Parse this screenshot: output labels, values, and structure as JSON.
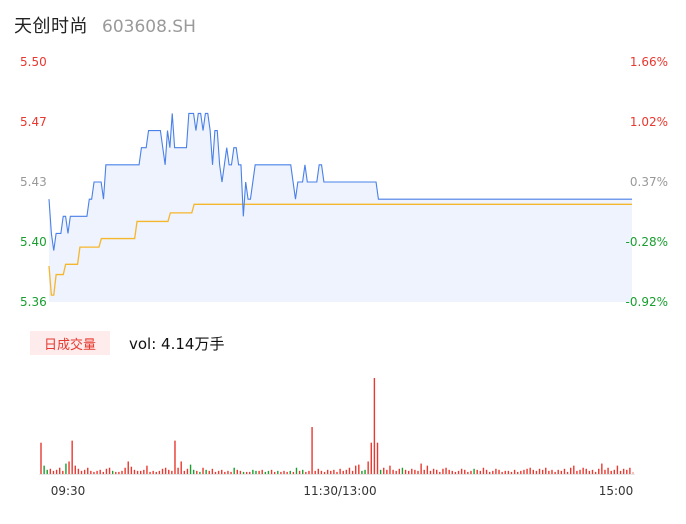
{
  "header": {
    "name": "天创时尚",
    "code": "603608.SH"
  },
  "volume_panel": {
    "tab_label": "日成交量",
    "vol_label": "vol: 4.14万手"
  },
  "colors": {
    "price_line": "#4a80e8",
    "avg_line": "#f5b62c",
    "up": "#e8382f",
    "down": "#1a9e2f",
    "flat": "#999999",
    "area_fill": "#eef3fd"
  },
  "chart_data": [
    {
      "type": "line",
      "title": "",
      "y_left_ticks": [
        "5.50",
        "5.47",
        "5.43",
        "5.40",
        "5.36"
      ],
      "y_right_ticks": [
        "1.66%",
        "1.02%",
        "0.37%",
        "-0.28%",
        "-0.92%"
      ],
      "ylim": [
        5.36,
        5.5
      ],
      "series": [
        {
          "values": [
            5.42,
            5.4,
            5.39,
            5.4,
            5.4,
            5.4,
            5.41,
            5.41,
            5.4,
            5.41,
            5.41,
            5.41,
            5.41,
            5.41,
            5.41,
            5.41,
            5.41,
            5.42,
            5.42,
            5.43,
            5.43,
            5.43,
            5.43,
            5.42,
            5.44,
            5.44,
            5.44,
            5.44,
            5.44,
            5.44,
            5.44,
            5.44,
            5.44,
            5.44,
            5.44,
            5.44,
            5.44,
            5.44,
            5.44,
            5.45,
            5.45,
            5.45,
            5.46,
            5.46,
            5.46,
            5.46,
            5.46,
            5.46,
            5.45,
            5.44,
            5.46,
            5.45,
            5.47,
            5.45,
            5.45,
            5.45,
            5.45,
            5.45,
            5.45,
            5.47,
            5.47,
            5.47,
            5.46,
            5.47,
            5.47,
            5.46,
            5.47,
            5.47,
            5.46,
            5.44,
            5.46,
            5.46,
            5.44,
            5.43,
            5.44,
            5.45,
            5.44,
            5.44,
            5.45,
            5.45,
            5.44,
            5.44,
            5.41,
            5.43,
            5.42,
            5.42,
            5.43,
            5.44,
            5.44,
            5.44,
            5.44,
            5.44,
            5.44,
            5.44,
            5.44,
            5.44,
            5.44,
            5.44,
            5.44,
            5.44,
            5.44,
            5.44,
            5.44,
            5.43,
            5.42,
            5.43,
            5.43,
            5.43,
            5.44,
            5.43,
            5.43,
            5.43,
            5.43,
            5.43,
            5.44,
            5.44,
            5.43,
            5.43,
            5.43,
            5.43,
            5.43,
            5.43,
            5.43,
            5.43,
            5.43,
            5.43,
            5.43,
            5.43,
            5.43,
            5.43,
            5.43,
            5.43,
            5.43,
            5.43,
            5.43,
            5.43,
            5.43,
            5.43,
            5.43,
            5.42,
            5.42,
            5.42,
            5.42,
            5.42,
            5.42,
            5.42,
            5.42,
            5.42,
            5.42,
            5.42,
            5.42,
            5.42,
            5.42,
            5.42,
            5.42,
            5.42,
            5.42,
            5.42,
            5.42,
            5.42,
            5.42,
            5.42,
            5.42,
            5.42,
            5.42,
            5.42,
            5.42,
            5.42,
            5.42,
            5.42,
            5.42,
            5.42,
            5.42,
            5.42,
            5.42,
            5.42,
            5.42,
            5.42,
            5.42,
            5.42,
            5.42,
            5.42,
            5.42,
            5.42,
            5.42,
            5.42,
            5.42,
            5.42,
            5.42,
            5.42,
            5.42,
            5.42,
            5.42,
            5.42,
            5.42,
            5.42,
            5.42,
            5.42,
            5.42,
            5.42,
            5.42,
            5.42,
            5.42,
            5.42,
            5.42,
            5.42,
            5.42,
            5.42,
            5.42,
            5.42,
            5.42,
            5.42,
            5.42,
            5.42,
            5.42,
            5.42,
            5.42,
            5.42,
            5.42,
            5.42,
            5.42,
            5.42,
            5.42,
            5.42,
            5.42,
            5.42,
            5.42,
            5.42,
            5.42,
            5.42,
            5.42,
            5.42,
            5.42,
            5.42,
            5.42,
            5.42,
            5.42,
            5.42,
            5.42,
            5.42,
            5.42,
            5.42,
            5.42,
            5.42,
            5.42,
            5.42,
            5.42
          ]
        },
        {
          "values": [
            5.381,
            5.364,
            5.364,
            5.376,
            5.376,
            5.376,
            5.376,
            5.382,
            5.382,
            5.382,
            5.382,
            5.382,
            5.382,
            5.392,
            5.392,
            5.392,
            5.392,
            5.392,
            5.392,
            5.392,
            5.392,
            5.392,
            5.397,
            5.397,
            5.397,
            5.397,
            5.397,
            5.397,
            5.397,
            5.397,
            5.397,
            5.397,
            5.397,
            5.397,
            5.397,
            5.397,
            5.397,
            5.407,
            5.407,
            5.407,
            5.407,
            5.407,
            5.407,
            5.407,
            5.407,
            5.407,
            5.407,
            5.407,
            5.407,
            5.407,
            5.407,
            5.412,
            5.412,
            5.412,
            5.412,
            5.412,
            5.412,
            5.412,
            5.412,
            5.412,
            5.412,
            5.417,
            5.417,
            5.417,
            5.417,
            5.417,
            5.417,
            5.417,
            5.417,
            5.417,
            5.417,
            5.417,
            5.417,
            5.417,
            5.417,
            5.417,
            5.417,
            5.417,
            5.417,
            5.417,
            5.417,
            5.417,
            5.417,
            5.417,
            5.417,
            5.417,
            5.417,
            5.417,
            5.417,
            5.417,
            5.417,
            5.417,
            5.417,
            5.417,
            5.417,
            5.417,
            5.417,
            5.417,
            5.417,
            5.417,
            5.417,
            5.417,
            5.417,
            5.417,
            5.417,
            5.417,
            5.417,
            5.417,
            5.417,
            5.417,
            5.417,
            5.417,
            5.417,
            5.417,
            5.417,
            5.417,
            5.417,
            5.417,
            5.417,
            5.417,
            5.417,
            5.417,
            5.417,
            5.417,
            5.417,
            5.417,
            5.417,
            5.417,
            5.417,
            5.417,
            5.417,
            5.417,
            5.417,
            5.417,
            5.417,
            5.417,
            5.417,
            5.417,
            5.417,
            5.417,
            5.417,
            5.417,
            5.417,
            5.417,
            5.417,
            5.417,
            5.417,
            5.417,
            5.417,
            5.417,
            5.417,
            5.417,
            5.417,
            5.417,
            5.417,
            5.417,
            5.417,
            5.417,
            5.417,
            5.417,
            5.417,
            5.417,
            5.417,
            5.417,
            5.417,
            5.417,
            5.417,
            5.417,
            5.417,
            5.417,
            5.417,
            5.417,
            5.417,
            5.417,
            5.417,
            5.417,
            5.417,
            5.417,
            5.417,
            5.417,
            5.417,
            5.417,
            5.417,
            5.417,
            5.417,
            5.417,
            5.417,
            5.417,
            5.417,
            5.417,
            5.417,
            5.417,
            5.417,
            5.417,
            5.417,
            5.417,
            5.417,
            5.417,
            5.417,
            5.417,
            5.417,
            5.417,
            5.417,
            5.417,
            5.417,
            5.417,
            5.417,
            5.417,
            5.417,
            5.417,
            5.417,
            5.417,
            5.417,
            5.417,
            5.417,
            5.417,
            5.417,
            5.417,
            5.417,
            5.417,
            5.417,
            5.417,
            5.417,
            5.417,
            5.417,
            5.417,
            5.417,
            5.417,
            5.417,
            5.417,
            5.417,
            5.417,
            5.417,
            5.417,
            5.417,
            5.417,
            5.417,
            5.417,
            5.417,
            5.417,
            5.417,
            5.417,
            5.417,
            5.417,
            5.417,
            5.417
          ]
        }
      ]
    },
    {
      "type": "bar",
      "title": "",
      "x_ticks": [
        "09:30",
        "11:30/13:00",
        "15:00"
      ],
      "series": [
        {
          "values": [
            30,
            8,
            4,
            5,
            3,
            4,
            6,
            3,
            10,
            12,
            32,
            8,
            5,
            3,
            4,
            6,
            3,
            2,
            3,
            4,
            2,
            5,
            6,
            3,
            2,
            2,
            3,
            6,
            12,
            7,
            4,
            3,
            3,
            4,
            8,
            2,
            3,
            2,
            3,
            5,
            6,
            4,
            3,
            32,
            6,
            12,
            3,
            5,
            9,
            4,
            3,
            2,
            6,
            4,
            3,
            5,
            2,
            3,
            4,
            2,
            3,
            2,
            6,
            4,
            3,
            2,
            2,
            2,
            4,
            3,
            3,
            4,
            2,
            3,
            4,
            2,
            3,
            2,
            3,
            2,
            3,
            2,
            6,
            3,
            4,
            2,
            3,
            45,
            3,
            5,
            3,
            2,
            4,
            3,
            4,
            2,
            5,
            3,
            4,
            6,
            3,
            8,
            9,
            3,
            4,
            12,
            30,
            92,
            30,
            4,
            6,
            4,
            8,
            4,
            3,
            5,
            6,
            4,
            3,
            5,
            4,
            3,
            10,
            4,
            8,
            3,
            5,
            4,
            2,
            5,
            6,
            4,
            3,
            2,
            3,
            5,
            4,
            2,
            3,
            5,
            4,
            3,
            6,
            4,
            2,
            3,
            5,
            4,
            2,
            3,
            3,
            2,
            4,
            2,
            3,
            4,
            5,
            6,
            4,
            3,
            5,
            4,
            6,
            3,
            4,
            2,
            4,
            3,
            5,
            2,
            6,
            8,
            3,
            4,
            6,
            5,
            3,
            4,
            2,
            5,
            10,
            4,
            6,
            3,
            4,
            8,
            3,
            5,
            4,
            6,
            2
          ]
        }
      ]
    }
  ]
}
